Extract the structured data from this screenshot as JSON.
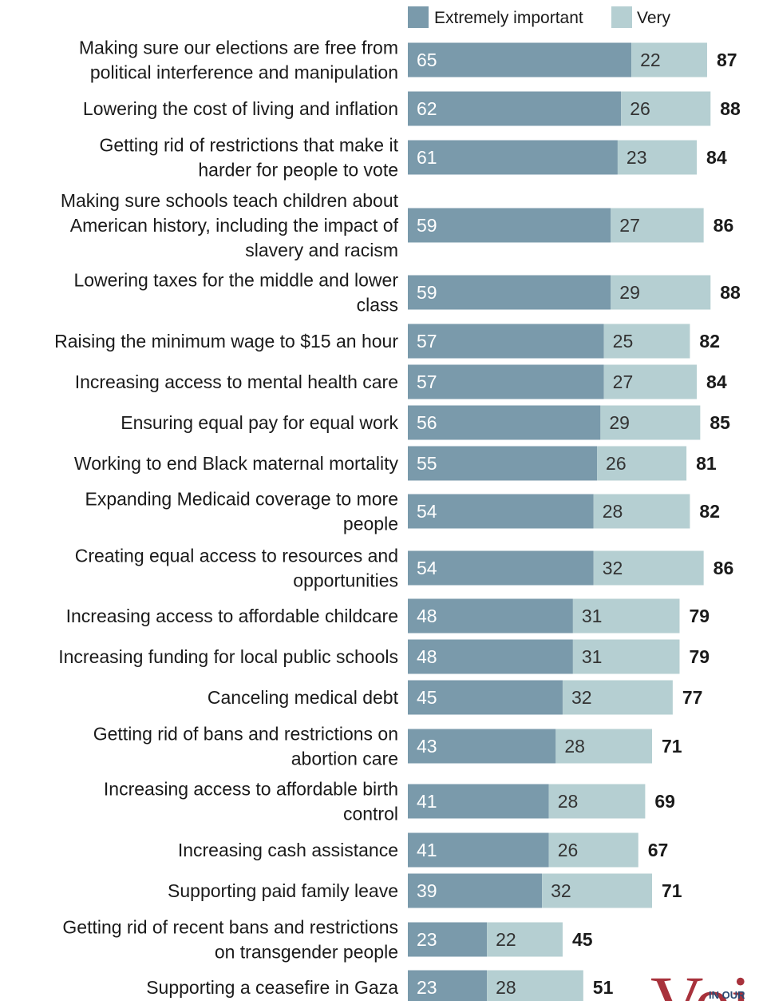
{
  "chart_data": {
    "type": "bar",
    "orientation": "horizontal",
    "stacked": true,
    "legend_position": "top",
    "series": [
      {
        "name": "Extremely important",
        "color": "#7a9aab",
        "values": [
          65,
          62,
          61,
          59,
          59,
          57,
          57,
          56,
          55,
          54,
          54,
          48,
          48,
          45,
          43,
          41,
          41,
          39,
          23,
          23
        ]
      },
      {
        "name": "Very",
        "color": "#b5cfd2",
        "values": [
          22,
          26,
          23,
          27,
          29,
          25,
          27,
          29,
          26,
          28,
          32,
          31,
          31,
          32,
          28,
          28,
          26,
          32,
          22,
          28
        ]
      }
    ],
    "totals": [
      87,
      88,
      84,
      86,
      88,
      82,
      84,
      85,
      81,
      82,
      86,
      79,
      79,
      77,
      71,
      69,
      67,
      71,
      45,
      51
    ],
    "categories": [
      [
        "Making sure our elections are free from",
        "political interference and manipulation"
      ],
      [
        "Lowering the cost of living and inflation"
      ],
      [
        "Getting rid of restrictions that make it",
        "harder for people to vote"
      ],
      [
        "Making sure schools teach children about",
        "American history, including the impact of",
        "slavery and racism"
      ],
      [
        "Lowering taxes for the middle and lower",
        "class"
      ],
      [
        "Raising the minimum wage to $15 an hour"
      ],
      [
        "Increasing access to mental health care"
      ],
      [
        "Ensuring equal pay for equal work"
      ],
      [
        "Working to end Black maternal mortality"
      ],
      [
        "Expanding Medicaid coverage to more",
        "people"
      ],
      [
        "Creating equal access to resources and",
        "opportunities"
      ],
      [
        "Increasing access to affordable childcare"
      ],
      [
        "Increasing funding for local public schools"
      ],
      [
        "Canceling medical debt"
      ],
      [
        "Getting rid of bans and restrictions on",
        "abortion care"
      ],
      [
        "Increasing access to affordable birth",
        "control"
      ],
      [
        "Increasing cash assistance"
      ],
      [
        "Supporting paid family leave"
      ],
      [
        "Getting rid of recent bans and restrictions",
        "on transgender people"
      ],
      [
        "Supporting a ceasefire in Gaza"
      ]
    ],
    "xlim": [
      0,
      100
    ],
    "grid": false
  },
  "logo": {
    "mark": "Voi",
    "tagline": "IN OUR"
  }
}
